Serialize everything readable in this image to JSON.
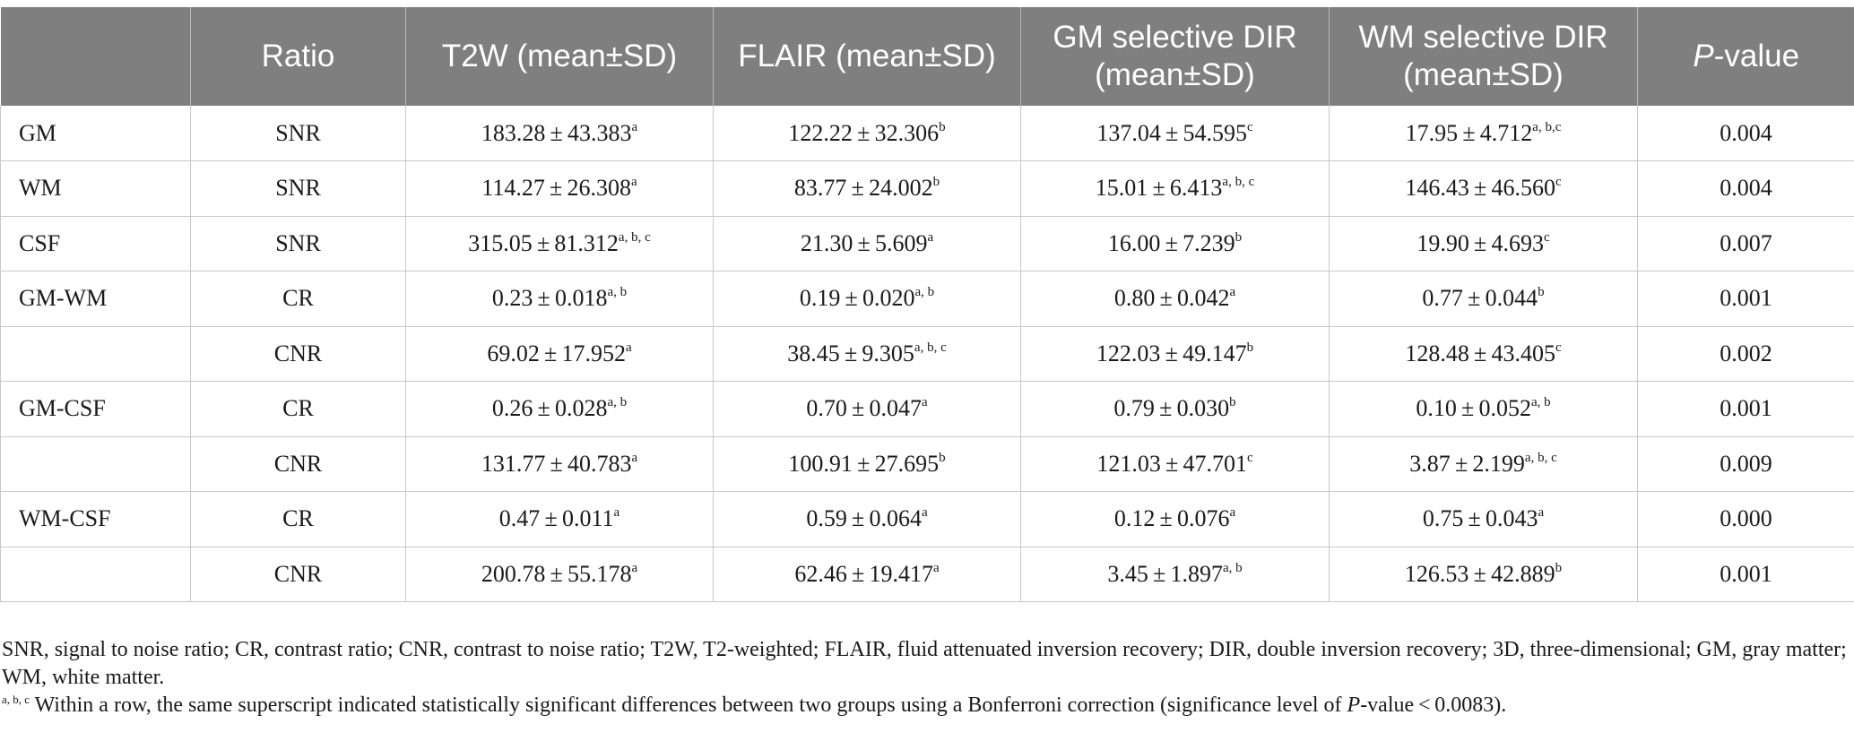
{
  "table": {
    "headers": [
      {
        "line1": "",
        "line2": ""
      },
      {
        "line1": "Ratio",
        "line2": ""
      },
      {
        "line1": "T2W (mean±SD)",
        "line2": ""
      },
      {
        "line1": "FLAIR (mean±SD)",
        "line2": ""
      },
      {
        "line1": "GM selective DIR",
        "line2": "(mean±SD)"
      },
      {
        "line1": "WM selective DIR",
        "line2": "(mean±SD)"
      }
    ],
    "pvalue_header": {
      "italic": "P",
      "rest": "-value"
    },
    "rows": [
      {
        "tissue": "GM",
        "ratio": "SNR",
        "t2w": {
          "v": "183.28 ± 43.383",
          "s": "a"
        },
        "flair": {
          "v": "122.22 ± 32.306",
          "s": "b"
        },
        "gm_dir": {
          "v": "137.04 ± 54.595",
          "s": "c"
        },
        "wm_dir": {
          "v": "17.95 ± 4.712",
          "s": "a, b,c"
        },
        "p": "0.004"
      },
      {
        "tissue": "WM",
        "ratio": "SNR",
        "t2w": {
          "v": "114.27 ± 26.308",
          "s": "a"
        },
        "flair": {
          "v": "83.77 ± 24.002",
          "s": "b"
        },
        "gm_dir": {
          "v": "15.01 ± 6.413",
          "s": "a, b, c"
        },
        "wm_dir": {
          "v": "146.43 ± 46.560",
          "s": "c"
        },
        "p": "0.004"
      },
      {
        "tissue": "CSF",
        "ratio": "SNR",
        "t2w": {
          "v": "315.05 ± 81.312",
          "s": "a, b, c"
        },
        "flair": {
          "v": "21.30 ± 5.609",
          "s": "a"
        },
        "gm_dir": {
          "v": "16.00 ± 7.239",
          "s": "b"
        },
        "wm_dir": {
          "v": "19.90 ± 4.693",
          "s": "c"
        },
        "p": "0.007"
      },
      {
        "tissue": "GM-WM",
        "ratio": "CR",
        "t2w": {
          "v": "0.23 ± 0.018",
          "s": "a, b"
        },
        "flair": {
          "v": "0.19 ± 0.020",
          "s": "a, b"
        },
        "gm_dir": {
          "v": "0.80 ± 0.042",
          "s": "a"
        },
        "wm_dir": {
          "v": "0.77 ± 0.044",
          "s": "b"
        },
        "p": "0.001"
      },
      {
        "tissue": "",
        "ratio": "CNR",
        "t2w": {
          "v": "69.02 ± 17.952",
          "s": "a"
        },
        "flair": {
          "v": "38.45 ± 9.305",
          "s": "a, b, c"
        },
        "gm_dir": {
          "v": "122.03 ± 49.147",
          "s": "b"
        },
        "wm_dir": {
          "v": "128.48 ± 43.405",
          "s": "c"
        },
        "p": "0.002"
      },
      {
        "tissue": "GM-CSF",
        "ratio": "CR",
        "t2w": {
          "v": "0.26 ± 0.028",
          "s": "a, b"
        },
        "flair": {
          "v": "0.70 ± 0.047",
          "s": "a"
        },
        "gm_dir": {
          "v": "0.79 ± 0.030",
          "s": "b"
        },
        "wm_dir": {
          "v": "0.10 ± 0.052",
          "s": "a, b"
        },
        "p": "0.001"
      },
      {
        "tissue": "",
        "ratio": "CNR",
        "t2w": {
          "v": "131.77 ± 40.783",
          "s": "a"
        },
        "flair": {
          "v": "100.91 ± 27.695",
          "s": "b"
        },
        "gm_dir": {
          "v": "121.03 ± 47.701",
          "s": "c"
        },
        "wm_dir": {
          "v": "3.87 ± 2.199",
          "s": "a, b, c"
        },
        "p": "0.009"
      },
      {
        "tissue": "WM-CSF",
        "ratio": "CR",
        "t2w": {
          "v": "0.47 ± 0.011",
          "s": "a"
        },
        "flair": {
          "v": "0.59 ± 0.064",
          "s": "a"
        },
        "gm_dir": {
          "v": "0.12 ± 0.076",
          "s": "a"
        },
        "wm_dir": {
          "v": "0.75 ± 0.043",
          "s": "a"
        },
        "p": "0.000"
      },
      {
        "tissue": "",
        "ratio": "CNR",
        "t2w": {
          "v": "200.78 ± 55.178",
          "s": "a"
        },
        "flair": {
          "v": "62.46 ± 19.417",
          "s": "a"
        },
        "gm_dir": {
          "v": "3.45 ± 1.897",
          "s": "a, b"
        },
        "wm_dir": {
          "v": "126.53 ± 42.889",
          "s": "b"
        },
        "p": "0.001"
      }
    ]
  },
  "notes": {
    "abbreviations": "SNR, signal to noise ratio; CR, contrast ratio; CNR, contrast to noise ratio; T2W, T2-weighted; FLAIR, fluid attenuated inversion recovery; DIR, double inversion recovery; 3D, three-dimensional; GM, gray matter; WM, white matter.",
    "footnote_marker": "a, b, c",
    "footnote_text_1": " Within a row, the same superscript indicated statistically significant differences between two groups using a Bonferroni correction (significance level of ",
    "footnote_italic": "P",
    "footnote_text_2": "-value < 0.0083)."
  },
  "colors": {
    "header_bg": "#7f7f7f",
    "header_text": "#ffffff",
    "border": "#c8c8c8"
  }
}
